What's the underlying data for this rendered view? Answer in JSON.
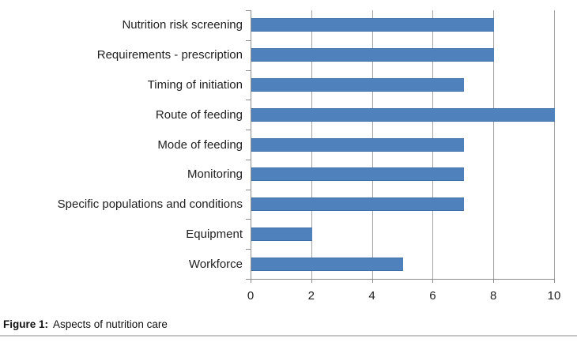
{
  "figure": {
    "caption_bold": "Figure 1:",
    "caption_rest": "Aspects of nutrition care"
  },
  "chart_data": {
    "type": "bar",
    "orientation": "horizontal",
    "title": "",
    "xlabel": "",
    "ylabel": "",
    "categories": [
      "Nutrition risk screening",
      "Requirements - prescription",
      "Timing of initiation",
      "Route of feeding",
      "Mode of feeding",
      "Monitoring",
      "Specific populations and conditions",
      "Equipment",
      "Workforce"
    ],
    "values": [
      8,
      8,
      7,
      10,
      7,
      7,
      7,
      2,
      5
    ],
    "xlim": [
      0,
      10
    ],
    "xticks": [
      0,
      2,
      4,
      6,
      8,
      10
    ],
    "grid": "vertical-gridlines-on",
    "legend": "none",
    "bar_color": "#4f81bd",
    "bar_border_color": "#3f6fa8",
    "axis_color": "#8c8c8c",
    "gridline_color": "#a3a3a3",
    "text_color": "#1f1f1f"
  }
}
